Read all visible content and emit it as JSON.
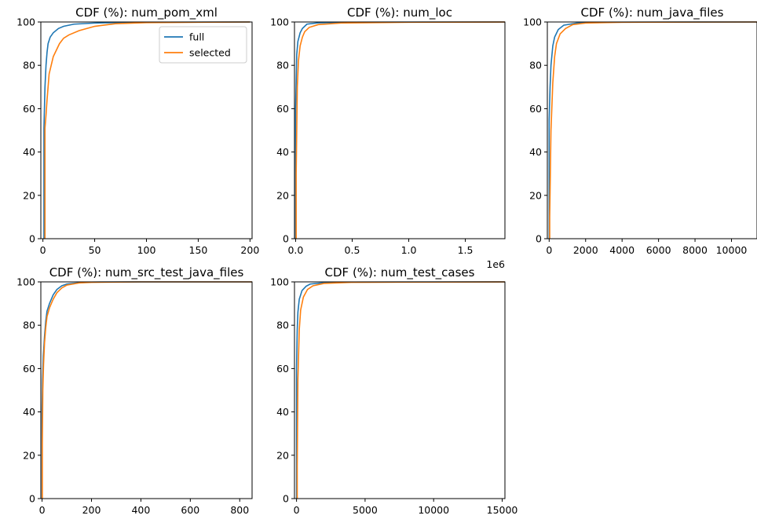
{
  "colors": {
    "full": "#1f77b4",
    "selected": "#ff7f0e"
  },
  "legend": {
    "entries": [
      "full",
      "selected"
    ],
    "placement": "top-right"
  },
  "chart_data": [
    {
      "type": "line",
      "title": "CDF (%): num_pom_xml",
      "xlim": [
        -2,
        202
      ],
      "ylim": [
        0,
        100
      ],
      "xticks": [
        0,
        50,
        100,
        150,
        200
      ],
      "yticks": [
        0,
        20,
        40,
        60,
        80,
        100
      ],
      "xtick_labels": [
        "0",
        "50",
        "100",
        "150",
        "200"
      ],
      "exponent_label": "",
      "series": [
        {
          "name": "full",
          "x": [
            1,
            1,
            2,
            3,
            4,
            5,
            7,
            10,
            15,
            20,
            30,
            50,
            80,
            120,
            200
          ],
          "y": [
            0,
            51,
            70,
            80,
            86,
            90,
            93,
            95,
            97,
            98,
            99,
            99.5,
            99.8,
            99.9,
            100
          ]
        },
        {
          "name": "selected",
          "x": [
            2,
            2,
            3,
            4,
            5,
            6,
            8,
            10,
            13,
            16,
            20,
            25,
            35,
            50,
            70,
            100,
            150,
            200
          ],
          "y": [
            0,
            51,
            57,
            64,
            70,
            76,
            80,
            84,
            87,
            90,
            92.5,
            94,
            96,
            98,
            99.2,
            99.7,
            99.9,
            100
          ]
        }
      ]
    },
    {
      "type": "line",
      "title": "CDF (%): num_loc",
      "xlim": [
        -10000,
        1850000
      ],
      "ylim": [
        0,
        100
      ],
      "xticks": [
        0,
        500000,
        1000000,
        1500000
      ],
      "yticks": [
        0,
        20,
        40,
        60,
        80,
        100
      ],
      "xtick_labels": [
        "0.0",
        "0.5",
        "1.0",
        "1.5"
      ],
      "exponent_label": "1e6",
      "series": [
        {
          "name": "full",
          "x": [
            0,
            0,
            10000,
            20000,
            40000,
            60000,
            100000,
            200000,
            500000,
            1850000
          ],
          "y": [
            0,
            60,
            85,
            91,
            95,
            97,
            99,
            99.6,
            99.9,
            100
          ]
        },
        {
          "name": "selected",
          "x": [
            5000,
            5000,
            15000,
            25000,
            40000,
            60000,
            80000,
            120000,
            200000,
            400000,
            1000000,
            1850000
          ],
          "y": [
            0,
            30,
            70,
            82,
            89,
            93,
            95.5,
            97.5,
            98.8,
            99.5,
            99.9,
            100
          ]
        }
      ]
    },
    {
      "type": "line",
      "title": "CDF (%): num_java_files",
      "xlim": [
        -100,
        11400
      ],
      "ylim": [
        0,
        100
      ],
      "xticks": [
        0,
        2000,
        4000,
        6000,
        8000,
        10000
      ],
      "yticks": [
        0,
        20,
        40,
        60,
        80,
        100
      ],
      "xtick_labels": [
        "0",
        "2000",
        "4000",
        "6000",
        "8000",
        "10000"
      ],
      "exponent_label": "",
      "series": [
        {
          "name": "full",
          "x": [
            0,
            0,
            50,
            100,
            200,
            300,
            500,
            800,
            1500,
            3000,
            11400
          ],
          "y": [
            0,
            55,
            70,
            80,
            89,
            93,
            96.5,
            98.5,
            99.5,
            99.9,
            100
          ]
        },
        {
          "name": "selected",
          "x": [
            30,
            30,
            100,
            200,
            300,
            400,
            600,
            900,
            1300,
            2000,
            4000,
            11400
          ],
          "y": [
            0,
            10,
            50,
            72,
            84,
            90,
            94.5,
            97,
            98.8,
            99.5,
            99.9,
            100
          ]
        }
      ]
    },
    {
      "type": "line",
      "title": "CDF (%): num_src_test_java_files",
      "xlim": [
        -5,
        850
      ],
      "ylim": [
        0,
        100
      ],
      "xticks": [
        0,
        200,
        400,
        600,
        800
      ],
      "yticks": [
        0,
        20,
        40,
        60,
        80,
        100
      ],
      "xtick_labels": [
        "0",
        "200",
        "400",
        "600",
        "800"
      ],
      "exponent_label": "",
      "series": [
        {
          "name": "full",
          "x": [
            0,
            0,
            2,
            5,
            10,
            15,
            20,
            30,
            45,
            60,
            80,
            100,
            150,
            200,
            400,
            850
          ],
          "y": [
            0,
            40,
            55,
            66,
            75,
            82,
            86.5,
            90,
            94,
            96.5,
            98.2,
            99,
            99.6,
            99.9,
            100,
            100
          ]
        },
        {
          "name": "selected",
          "x": [
            1,
            1,
            3,
            6,
            10,
            15,
            20,
            30,
            45,
            60,
            80,
            100,
            150,
            200,
            400,
            850
          ],
          "y": [
            0,
            25,
            50,
            62,
            72,
            79,
            84,
            88,
            92,
            95,
            97.2,
            98.5,
            99.5,
            99.8,
            100,
            100
          ]
        }
      ]
    },
    {
      "type": "line",
      "title": "CDF (%): num_test_cases",
      "xlim": [
        -150,
        15200
      ],
      "ylim": [
        0,
        100
      ],
      "xticks": [
        0,
        5000,
        10000,
        15000
      ],
      "yticks": [
        0,
        20,
        40,
        60,
        80,
        100
      ],
      "xtick_labels": [
        "0",
        "5000",
        "10000",
        "15000"
      ],
      "exponent_label": "",
      "series": [
        {
          "name": "full",
          "x": [
            0,
            0,
            50,
            100,
            200,
            400,
            700,
            1000,
            2000,
            4000,
            15200
          ],
          "y": [
            0,
            60,
            78,
            86,
            92,
            96,
            98,
            99,
            99.6,
            99.9,
            100
          ]
        },
        {
          "name": "selected",
          "x": [
            50,
            50,
            100,
            200,
            300,
            500,
            800,
            1200,
            2000,
            4000,
            15200
          ],
          "y": [
            0,
            15,
            55,
            78,
            87,
            93,
            96.5,
            98.2,
            99.3,
            99.8,
            100
          ]
        }
      ]
    }
  ]
}
